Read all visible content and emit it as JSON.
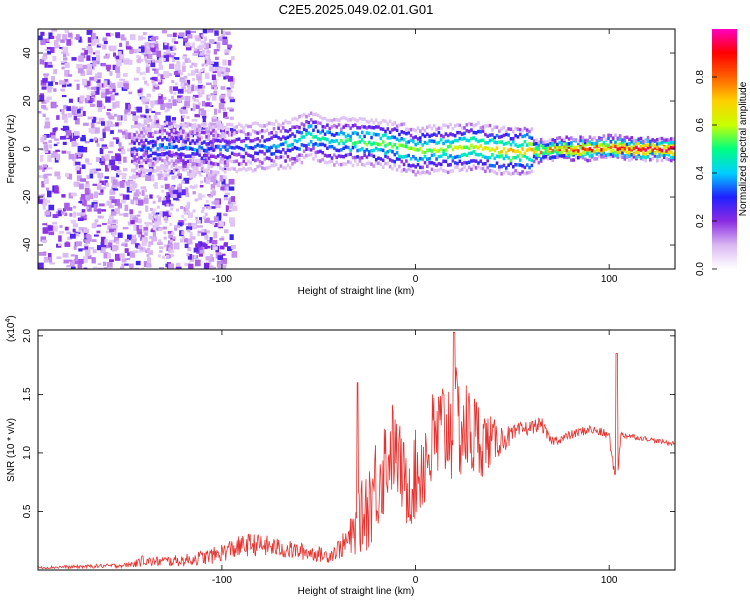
{
  "chart_data": [
    {
      "type": "heatmap",
      "title": "C2E5.2025.049.02.01.G01",
      "xlabel": "Height of straight line (km)",
      "ylabel": "Frequency (Hz)",
      "xlim": [
        -195,
        134
      ],
      "ylim": [
        -50,
        50
      ],
      "x_ticks": [
        -100,
        0,
        100
      ],
      "y_ticks": [
        -40,
        -20,
        0,
        20,
        40
      ],
      "colorbar": {
        "label": "Normalized spectral amplitude",
        "range": [
          0,
          1
        ],
        "ticks": [
          "0.0",
          "0.2",
          "0.4",
          "0.6",
          "0.8"
        ],
        "tick_values": [
          0,
          0.2,
          0.4,
          0.6,
          0.8
        ],
        "colors": [
          "#ffffff",
          "#d9b8f2",
          "#8a2be2",
          "#2020ff",
          "#00d0ff",
          "#00ff80",
          "#c8ff00",
          "#ffd000",
          "#ff6000",
          "#ff0000",
          "#ff00c0"
        ]
      },
      "ridge": {
        "x": [
          -145,
          -130,
          -115,
          -100,
          -80,
          -65,
          -55,
          -45,
          -30,
          -15,
          0,
          15,
          30,
          45,
          60,
          75,
          90,
          100,
          110,
          120,
          134
        ],
        "y": [
          0,
          1,
          0,
          0,
          1,
          2,
          6,
          3,
          3,
          2,
          -1,
          0,
          1,
          -1,
          -1,
          0,
          0,
          1,
          0,
          0,
          0
        ],
        "amplitude": [
          0.3,
          0.35,
          0.35,
          0.3,
          0.35,
          0.4,
          0.45,
          0.45,
          0.5,
          0.55,
          0.55,
          0.55,
          0.6,
          0.65,
          0.7,
          0.8,
          0.85,
          0.85,
          0.9,
          0.9,
          0.9
        ]
      }
    },
    {
      "type": "line",
      "xlabel": "Height of straight line (km)",
      "ylabel": "SNR (10 * v/v)",
      "y_exponent_label": "(x10",
      "y_exponent_power": "4",
      "y_exponent_close": ")",
      "xlim": [
        -195,
        134
      ],
      "ylim": [
        0,
        2.05
      ],
      "x_ticks": [
        -100,
        0,
        100
      ],
      "y_ticks": [
        0.5,
        1.0,
        1.5,
        2.0
      ],
      "y_tick_labels": [
        "0.5",
        "1.0",
        "1.5",
        "2.0"
      ],
      "color": "#e8322e",
      "envelope": {
        "x": [
          -195,
          -170,
          -150,
          -140,
          -120,
          -105,
          -95,
          -85,
          -75,
          -65,
          -55,
          -45,
          -38,
          -32,
          -28,
          -25,
          -20,
          -15,
          -12,
          -8,
          -5,
          0,
          5,
          10,
          15,
          20,
          25,
          30,
          35,
          40,
          45,
          50,
          55,
          60,
          65,
          68,
          70,
          75,
          80,
          85,
          90,
          95,
          100,
          102,
          104,
          106,
          110,
          115,
          120,
          125,
          134
        ],
        "y": [
          0.02,
          0.03,
          0.04,
          0.07,
          0.08,
          0.12,
          0.18,
          0.22,
          0.2,
          0.17,
          0.15,
          0.12,
          0.2,
          0.3,
          0.45,
          0.55,
          0.75,
          0.95,
          1.05,
          0.9,
          0.7,
          0.8,
          0.95,
          1.1,
          1.2,
          1.25,
          1.2,
          1.15,
          1.1,
          1.1,
          1.12,
          1.15,
          1.2,
          1.22,
          1.25,
          1.15,
          1.1,
          1.12,
          1.15,
          1.18,
          1.2,
          1.18,
          1.15,
          0.9,
          0.75,
          1.15,
          1.15,
          1.13,
          1.12,
          1.1,
          1.08
        ],
        "noise": [
          0.01,
          0.015,
          0.02,
          0.04,
          0.05,
          0.07,
          0.09,
          0.1,
          0.09,
          0.08,
          0.07,
          0.06,
          0.1,
          0.2,
          0.3,
          0.4,
          0.45,
          0.45,
          0.4,
          0.35,
          0.35,
          0.4,
          0.45,
          0.5,
          0.5,
          0.5,
          0.45,
          0.4,
          0.3,
          0.2,
          0.12,
          0.08,
          0.07,
          0.06,
          0.06,
          0.05,
          0.04,
          0.04,
          0.04,
          0.04,
          0.04,
          0.04,
          0.04,
          0.04,
          0.03,
          0.03,
          0.03,
          0.02,
          0.02,
          0.02,
          0.02
        ]
      },
      "spikes": {
        "x": [
          -141,
          -30,
          20,
          104
        ],
        "y": [
          0.12,
          1.6,
          2.03,
          1.85
        ]
      }
    }
  ]
}
